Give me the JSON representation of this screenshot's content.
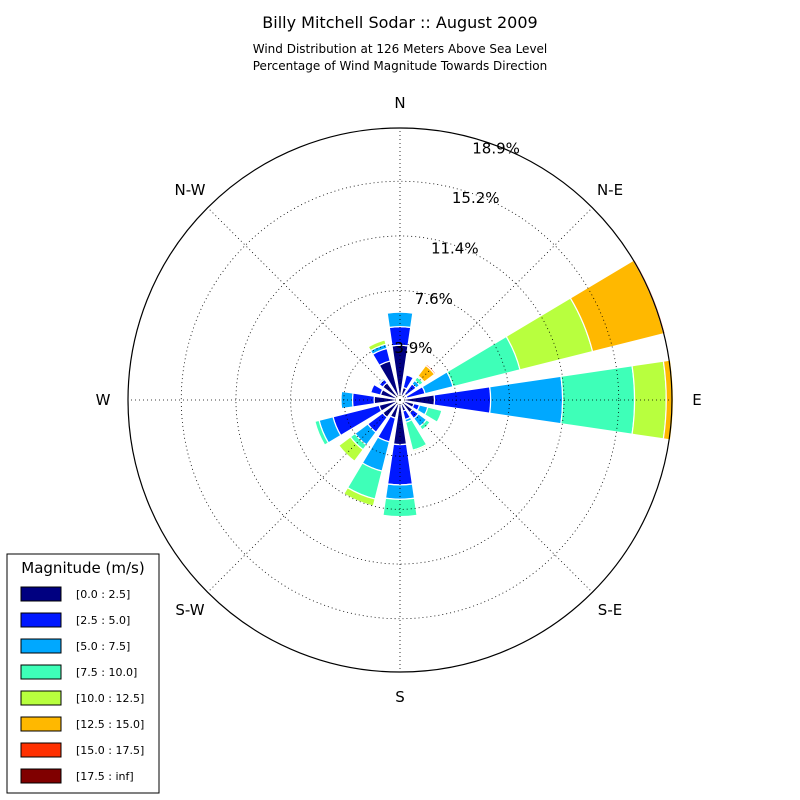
{
  "chart_data": {
    "type": "windrose",
    "title": "Billy Mitchell Sodar :: August 2009",
    "subtitle_lines": [
      "Wind Distribution at 126 Meters Above Sea Level",
      "Percentage of Wind Magnitude Towards Direction"
    ],
    "direction_labels": [
      "N",
      "N-E",
      "E",
      "S-E",
      "S",
      "S-W",
      "W",
      "N-W"
    ],
    "radial_ticks": [
      3.9,
      7.6,
      11.4,
      15.2,
      18.9
    ],
    "radial_tick_labels": [
      "3.9%",
      "7.6%",
      "11.4%",
      "15.2%",
      "18.9%"
    ],
    "radial_max": 18.9,
    "grid": true,
    "legend": {
      "title": "Magnitude (m/s)",
      "placement": "lower-left",
      "entries": [
        {
          "label": "[0.0 : 2.5]",
          "color": "#000080"
        },
        {
          "label": "[2.5 : 5.0]",
          "color": "#0018ff"
        },
        {
          "label": "[5.0 : 7.5]",
          "color": "#00a8ff"
        },
        {
          "label": "[7.5 : 10.0]",
          "color": "#3effb8"
        },
        {
          "label": "[10.0 : 12.5]",
          "color": "#b8ff3e"
        },
        {
          "label": "[12.5 : 15.0]",
          "color": "#ffb800"
        },
        {
          "label": "[15.0 : 17.5]",
          "color": "#ff3000"
        },
        {
          "label": "[17.5 : inf]",
          "color": "#800000"
        }
      ]
    },
    "bins": [
      "[0.0 : 2.5]",
      "[2.5 : 5.0]",
      "[5.0 : 7.5]",
      "[7.5 : 10.0]",
      "[10.0 : 12.5]",
      "[12.5 : 15.0]",
      "[15.0 : 17.5]",
      "[17.5 : inf]"
    ],
    "bars": [
      {
        "direction_deg": 0,
        "cumulative_pct": [
          3.8,
          5.1,
          6.1,
          6.1,
          6.1,
          6.1,
          6.1,
          6.1
        ]
      },
      {
        "direction_deg": 22.5,
        "cumulative_pct": [
          0.9,
          1.8,
          1.8,
          1.8,
          1.8,
          1.8,
          1.8,
          1.8
        ]
      },
      {
        "direction_deg": 45,
        "cumulative_pct": [
          0.5,
          1.4,
          1.7,
          2.0,
          2.1,
          3.0,
          3.1,
          3.1
        ]
      },
      {
        "direction_deg": 67.5,
        "cumulative_pct": [
          0.5,
          1.8,
          3.8,
          8.6,
          13.8,
          18.9,
          19.0,
          19.0
        ]
      },
      {
        "direction_deg": 90,
        "cumulative_pct": [
          2.4,
          6.3,
          11.3,
          16.3,
          18.5,
          19.0,
          19.0,
          19.0
        ]
      },
      {
        "direction_deg": 112.5,
        "cumulative_pct": [
          1.0,
          1.4,
          2.0,
          3.0,
          3.0,
          3.0,
          3.0,
          3.0
        ]
      },
      {
        "direction_deg": 135,
        "cumulative_pct": [
          1.1,
          1.6,
          2.3,
          2.6,
          2.6,
          2.6,
          2.6,
          2.6
        ]
      },
      {
        "direction_deg": 157.5,
        "cumulative_pct": [
          0.8,
          1.4,
          1.6,
          3.6,
          3.7,
          3.7,
          3.7,
          3.7
        ]
      },
      {
        "direction_deg": 180,
        "cumulative_pct": [
          3.1,
          5.9,
          6.9,
          8.1,
          8.1,
          8.1,
          8.1,
          8.1
        ]
      },
      {
        "direction_deg": 202.5,
        "cumulative_pct": [
          1.3,
          3.0,
          5.1,
          7.1,
          7.6,
          7.6,
          7.6,
          7.6
        ]
      },
      {
        "direction_deg": 225,
        "cumulative_pct": [
          1.5,
          2.8,
          3.9,
          4.3,
          5.3,
          5.3,
          5.3,
          5.3
        ]
      },
      {
        "direction_deg": 247.5,
        "cumulative_pct": [
          1.5,
          4.8,
          5.8,
          6.1,
          6.1,
          6.1,
          6.1,
          6.1
        ]
      },
      {
        "direction_deg": 270,
        "cumulative_pct": [
          1.8,
          3.3,
          4.1,
          4.1,
          4.1,
          4.1,
          4.1,
          4.1
        ]
      },
      {
        "direction_deg": 292.5,
        "cumulative_pct": [
          1.4,
          2.1,
          2.1,
          2.1,
          2.1,
          2.1,
          2.1,
          2.1
        ]
      },
      {
        "direction_deg": 315,
        "cumulative_pct": [
          1.5,
          1.8,
          1.9,
          1.9,
          1.9,
          1.9,
          1.9,
          1.9
        ]
      },
      {
        "direction_deg": 337.5,
        "cumulative_pct": [
          2.8,
          3.7,
          4.0,
          4.0,
          4.3,
          4.3,
          4.3,
          4.3
        ]
      }
    ]
  }
}
